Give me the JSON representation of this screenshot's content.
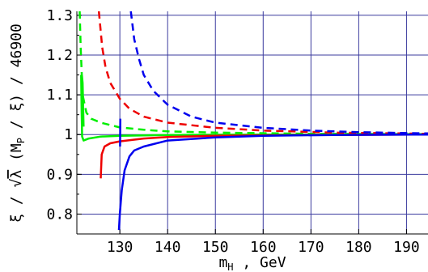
{
  "chart_data": {
    "type": "line",
    "title": "",
    "xlabel": "m_H , GeV",
    "xlabel_main": "m",
    "xlabel_sub": "H",
    "xlabel_rest": " , GeV",
    "ylabel": "ξ / √λ (M_P / ξ) / 46900",
    "ylabel_parts": {
      "pre": "ξ / ",
      "sqrt_sym": "√",
      "sqrt_arg": "λ",
      "mid": " (M",
      "sub": "P",
      "post": " / ξ) / 46900"
    },
    "xlim": [
      121,
      194.5
    ],
    "ylim": [
      0.75,
      1.31
    ],
    "xticks": [
      130,
      140,
      150,
      160,
      170,
      180,
      190
    ],
    "xtick_labels": [
      "130",
      "140",
      "150",
      "160",
      "170",
      "180",
      "190"
    ],
    "yticks": [
      0.8,
      0.9,
      1.0,
      1.1,
      1.2,
      1.3
    ],
    "ytick_labels": [
      "0.8",
      "0.9",
      "1",
      "1.1",
      "1.2",
      "1.3"
    ],
    "grid": true,
    "colors": {
      "grid": "#3b3b9e",
      "green": "#00ee00",
      "red": "#ee0000",
      "blue": "#0000ee"
    },
    "series": [
      {
        "color": "green",
        "style": "solid",
        "points": [
          [
            121.9,
            1.15
          ],
          [
            122.0,
            1.06
          ],
          [
            122.1,
            0.995
          ],
          [
            122.4,
            0.985
          ],
          [
            123.5,
            0.99
          ],
          [
            126,
            0.995
          ],
          [
            130,
            0.997
          ],
          [
            140,
            0.999
          ],
          [
            160,
            1.0
          ],
          [
            194.5,
            1.0
          ]
        ]
      },
      {
        "color": "green",
        "style": "solid",
        "points": [
          [
            122.05,
            1.15
          ],
          [
            122.2,
            1.13
          ],
          [
            122.4,
            1.02
          ]
        ]
      },
      {
        "color": "green",
        "style": "dashed",
        "points": [
          [
            121.6,
            1.31
          ],
          [
            121.8,
            1.22
          ],
          [
            122.2,
            1.1
          ],
          [
            123,
            1.055
          ],
          [
            124,
            1.04
          ],
          [
            126,
            1.03
          ],
          [
            130,
            1.018
          ],
          [
            135,
            1.012
          ],
          [
            140,
            1.008
          ],
          [
            150,
            1.005
          ],
          [
            170,
            1.002
          ],
          [
            194.5,
            1.001
          ]
        ]
      },
      {
        "color": "red",
        "style": "solid",
        "points": [
          [
            126.0,
            0.89
          ],
          [
            126.2,
            0.95
          ],
          [
            126.8,
            0.97
          ],
          [
            128,
            0.978
          ],
          [
            130,
            0.983
          ],
          [
            135,
            0.99
          ],
          [
            140,
            0.994
          ],
          [
            150,
            0.997
          ],
          [
            170,
            0.999
          ],
          [
            194.5,
            1.0
          ]
        ]
      },
      {
        "color": "red",
        "style": "dashed",
        "points": [
          [
            125.6,
            1.31
          ],
          [
            126.3,
            1.22
          ],
          [
            127,
            1.17
          ],
          [
            128,
            1.13
          ],
          [
            130,
            1.09
          ],
          [
            132,
            1.065
          ],
          [
            135,
            1.045
          ],
          [
            140,
            1.03
          ],
          [
            150,
            1.017
          ],
          [
            160,
            1.01
          ],
          [
            175,
            1.005
          ],
          [
            194.5,
            1.002
          ]
        ]
      },
      {
        "color": "blue",
        "style": "solid",
        "points": [
          [
            129.8,
            0.76
          ],
          [
            130.0,
            0.8
          ],
          [
            130.4,
            0.86
          ],
          [
            131,
            0.91
          ],
          [
            132,
            0.945
          ],
          [
            133,
            0.96
          ],
          [
            135,
            0.97
          ],
          [
            140,
            0.985
          ],
          [
            150,
            0.993
          ],
          [
            160,
            0.997
          ],
          [
            175,
            0.999
          ],
          [
            194.5,
            1.0
          ]
        ]
      },
      {
        "color": "blue",
        "style": "solid",
        "points": [
          [
            130.05,
            0.97
          ],
          [
            130.1,
            1.04
          ]
        ]
      },
      {
        "color": "blue",
        "style": "dashed",
        "points": [
          [
            132.3,
            1.31
          ],
          [
            133,
            1.24
          ],
          [
            134,
            1.19
          ],
          [
            135,
            1.15
          ],
          [
            137,
            1.11
          ],
          [
            140,
            1.075
          ],
          [
            145,
            1.045
          ],
          [
            150,
            1.03
          ],
          [
            160,
            1.017
          ],
          [
            170,
            1.01
          ],
          [
            180,
            1.006
          ],
          [
            194.5,
            1.003
          ]
        ]
      }
    ]
  }
}
